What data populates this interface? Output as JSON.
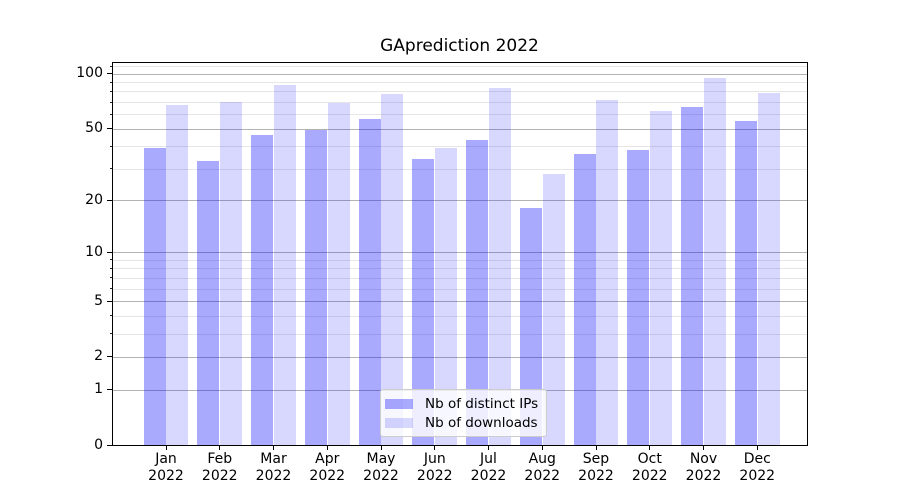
{
  "title": "GAprediction 2022",
  "chart_data": {
    "type": "bar",
    "title": "GAprediction 2022",
    "categories": [
      "Jan 2022",
      "Feb 2022",
      "Mar 2022",
      "Apr 2022",
      "May 2022",
      "Jun 2022",
      "Jul 2022",
      "Aug 2022",
      "Sep 2022",
      "Oct 2022",
      "Nov 2022",
      "Dec 2022"
    ],
    "series": [
      {
        "name": "Nb of distinct IPs",
        "color": "rgba(10,10,248,0.35)",
        "values": [
          39,
          33,
          46,
          49,
          56,
          34,
          43,
          18,
          36,
          38,
          65,
          55
        ]
      },
      {
        "name": "Nb of downloads",
        "color": "rgba(10,10,248,0.16)",
        "values": [
          67,
          70,
          86,
          69,
          77,
          39,
          83,
          28,
          71,
          62,
          94,
          78
        ]
      }
    ],
    "xlabel": "",
    "ylabel": "",
    "yscale": "log1p",
    "ylim": [
      0,
      115
    ],
    "grid": "horizontal, major and minor",
    "legend_position": "inside lower-center"
  },
  "y_axis": {
    "tick_values": [
      100,
      50,
      20,
      10,
      5,
      2,
      1,
      0
    ],
    "tick_labels": [
      "100",
      "50",
      "20",
      "10",
      "5",
      "2",
      "1",
      "0"
    ],
    "minor_tick_values": [
      3,
      4,
      6,
      7,
      8,
      9,
      30,
      40,
      60,
      70,
      80,
      90,
      110
    ]
  },
  "x_axis": {
    "months": [
      "Jan",
      "Feb",
      "Mar",
      "Apr",
      "May",
      "Jun",
      "Jul",
      "Aug",
      "Sep",
      "Oct",
      "Nov",
      "Dec"
    ],
    "year": "2022"
  },
  "colors": {
    "grid_major": "#b3b3b3",
    "grid_minor": "#e6e6e6",
    "spine": "#000000",
    "text": "#000000",
    "legend_border": "#cccccc",
    "legend_background": "rgba(255,255,255,0.8)"
  }
}
